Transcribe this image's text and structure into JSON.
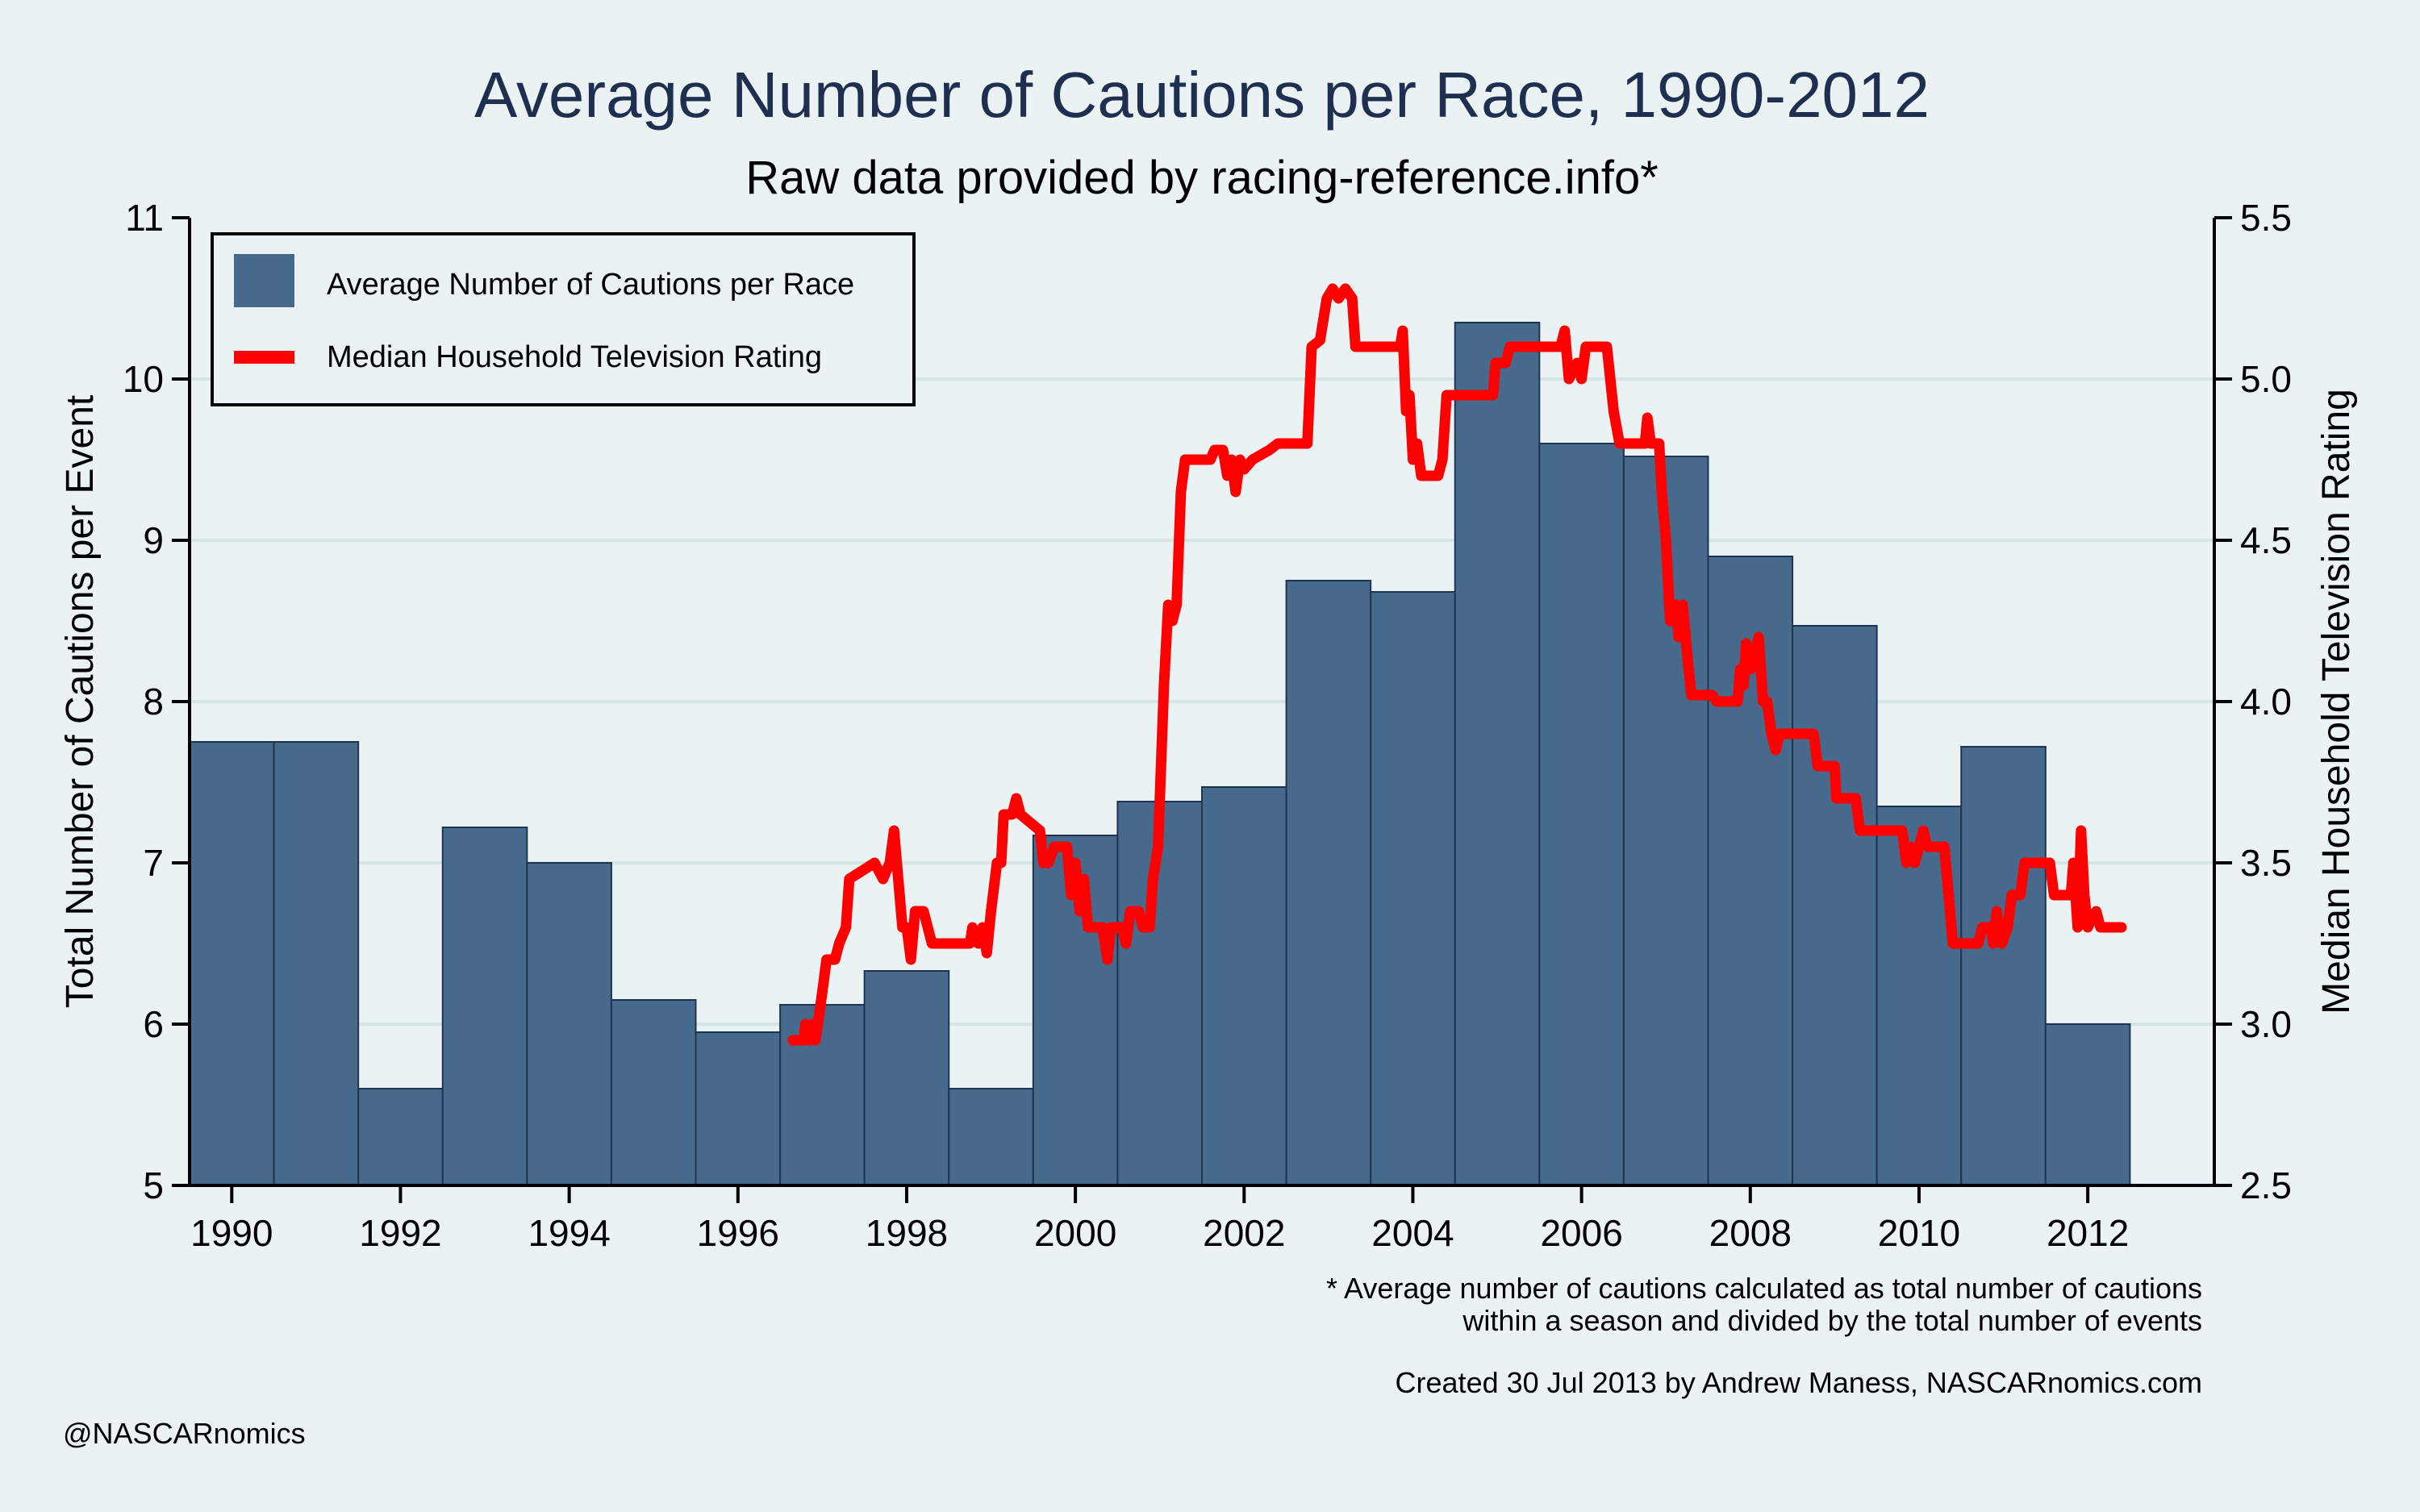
{
  "chart_data": {
    "type": "bar",
    "title": "Average Number of Cautions per Race, 1990-2012",
    "subtitle": "Raw data provided by racing-reference.info*",
    "ylabel": "Total Number of Cautions per Event",
    "y2label": "Median Household Television Rating",
    "xlim": [
      1989.5,
      2013.5
    ],
    "ylim": [
      5,
      11
    ],
    "y2lim": [
      2.5,
      5.5
    ],
    "x_ticks": [
      "1990",
      "1992",
      "1994",
      "1996",
      "1998",
      "2000",
      "2002",
      "2004",
      "2006",
      "2008",
      "2010",
      "2012"
    ],
    "y_ticks": [
      "5",
      "6",
      "7",
      "8",
      "9",
      "10",
      "11"
    ],
    "y2_ticks": [
      "2.5",
      "3.0",
      "3.5",
      "4.0",
      "4.5",
      "5.0",
      "5.5"
    ],
    "grid": true,
    "legend_position": "top-left",
    "colors": {
      "background": "#eaf2f3",
      "bar": "#476a8c",
      "line": "#ff0000",
      "title": "#1f2f4f"
    },
    "series": [
      {
        "name": "Average Number of Cautions per Race",
        "type": "bar",
        "axis": "left",
        "x": [
          1990,
          1991,
          1992,
          1993,
          1994,
          1995,
          1996,
          1997,
          1998,
          1999,
          2000,
          2001,
          2002,
          2003,
          2004,
          2005,
          2006,
          2007,
          2008,
          2009,
          2010,
          2011,
          2012
        ],
        "values": [
          7.75,
          7.75,
          5.6,
          7.22,
          7.0,
          6.15,
          5.95,
          6.12,
          6.33,
          5.6,
          7.17,
          7.38,
          7.47,
          8.75,
          8.68,
          10.35,
          9.6,
          9.52,
          8.9,
          8.47,
          7.35,
          7.72,
          6.0
        ]
      },
      {
        "name": "Median Household Television Rating",
        "type": "line",
        "axis": "right",
        "points": [
          [
            1996.65,
            2.95
          ],
          [
            1996.78,
            2.95
          ],
          [
            1996.8,
            3.0
          ],
          [
            1996.85,
            2.95
          ],
          [
            1996.88,
            3.0
          ],
          [
            1996.92,
            2.95
          ],
          [
            1997.0,
            3.1
          ],
          [
            1997.05,
            3.2
          ],
          [
            1997.15,
            3.2
          ],
          [
            1997.2,
            3.25
          ],
          [
            1997.28,
            3.3
          ],
          [
            1997.32,
            3.45
          ],
          [
            1997.5,
            3.48
          ],
          [
            1997.62,
            3.5
          ],
          [
            1997.72,
            3.45
          ],
          [
            1997.8,
            3.5
          ],
          [
            1997.85,
            3.6
          ],
          [
            1997.9,
            3.45
          ],
          [
            1997.95,
            3.3
          ],
          [
            1998.0,
            3.3
          ],
          [
            1998.05,
            3.2
          ],
          [
            1998.1,
            3.35
          ],
          [
            1998.2,
            3.35
          ],
          [
            1998.25,
            3.3
          ],
          [
            1998.3,
            3.25
          ],
          [
            1998.75,
            3.25
          ],
          [
            1998.78,
            3.3
          ],
          [
            1998.85,
            3.25
          ],
          [
            1998.9,
            3.3
          ],
          [
            1998.95,
            3.22
          ],
          [
            1999.0,
            3.35
          ],
          [
            1999.07,
            3.5
          ],
          [
            1999.12,
            3.5
          ],
          [
            1999.15,
            3.65
          ],
          [
            1999.25,
            3.65
          ],
          [
            1999.3,
            3.7
          ],
          [
            1999.35,
            3.65
          ],
          [
            1999.58,
            3.6
          ],
          [
            1999.62,
            3.5
          ],
          [
            1999.68,
            3.5
          ],
          [
            1999.75,
            3.55
          ],
          [
            1999.9,
            3.55
          ],
          [
            1999.95,
            3.4
          ],
          [
            2000.0,
            3.5
          ],
          [
            2000.05,
            3.35
          ],
          [
            2000.1,
            3.45
          ],
          [
            2000.15,
            3.3
          ],
          [
            2000.32,
            3.3
          ],
          [
            2000.38,
            3.2
          ],
          [
            2000.42,
            3.3
          ],
          [
            2000.55,
            3.3
          ],
          [
            2000.6,
            3.25
          ],
          [
            2000.65,
            3.35
          ],
          [
            2000.75,
            3.35
          ],
          [
            2000.8,
            3.3
          ],
          [
            2000.88,
            3.3
          ],
          [
            2000.92,
            3.45
          ],
          [
            2000.98,
            3.55
          ],
          [
            2001.05,
            4.05
          ],
          [
            2001.1,
            4.3
          ],
          [
            2001.15,
            4.25
          ],
          [
            2001.2,
            4.3
          ],
          [
            2001.25,
            4.65
          ],
          [
            2001.3,
            4.75
          ],
          [
            2001.6,
            4.75
          ],
          [
            2001.65,
            4.78
          ],
          [
            2001.75,
            4.78
          ],
          [
            2001.8,
            4.7
          ],
          [
            2001.85,
            4.75
          ],
          [
            2001.9,
            4.65
          ],
          [
            2001.95,
            4.75
          ],
          [
            2002.0,
            4.72
          ],
          [
            2002.1,
            4.75
          ],
          [
            2002.3,
            4.78
          ],
          [
            2002.4,
            4.8
          ],
          [
            2002.75,
            4.8
          ],
          [
            2002.8,
            5.1
          ],
          [
            2002.9,
            5.12
          ],
          [
            2002.98,
            5.25
          ],
          [
            2003.05,
            5.28
          ],
          [
            2003.12,
            5.25
          ],
          [
            2003.2,
            5.28
          ],
          [
            2003.28,
            5.25
          ],
          [
            2003.32,
            5.1
          ],
          [
            2003.85,
            5.1
          ],
          [
            2003.88,
            5.15
          ],
          [
            2003.92,
            4.9
          ],
          [
            2003.96,
            4.95
          ],
          [
            2004.0,
            4.75
          ],
          [
            2004.05,
            4.8
          ],
          [
            2004.1,
            4.7
          ],
          [
            2004.3,
            4.7
          ],
          [
            2004.35,
            4.75
          ],
          [
            2004.4,
            4.95
          ],
          [
            2004.95,
            4.95
          ],
          [
            2004.98,
            5.05
          ],
          [
            2005.1,
            5.05
          ],
          [
            2005.15,
            5.1
          ],
          [
            2005.75,
            5.1
          ],
          [
            2005.8,
            5.15
          ],
          [
            2005.85,
            5.0
          ],
          [
            2005.95,
            5.05
          ],
          [
            2006.0,
            5.0
          ],
          [
            2006.05,
            5.1
          ],
          [
            2006.3,
            5.1
          ],
          [
            2006.38,
            4.9
          ],
          [
            2006.45,
            4.8
          ],
          [
            2006.75,
            4.8
          ],
          [
            2006.78,
            4.88
          ],
          [
            2006.82,
            4.8
          ],
          [
            2006.92,
            4.8
          ],
          [
            2006.95,
            4.65
          ],
          [
            2007.0,
            4.5
          ],
          [
            2007.05,
            4.25
          ],
          [
            2007.12,
            4.3
          ],
          [
            2007.15,
            4.2
          ],
          [
            2007.2,
            4.3
          ],
          [
            2007.25,
            4.15
          ],
          [
            2007.3,
            4.02
          ],
          [
            2007.55,
            4.02
          ],
          [
            2007.6,
            4.0
          ],
          [
            2007.85,
            4.0
          ],
          [
            2007.88,
            4.1
          ],
          [
            2007.92,
            4.05
          ],
          [
            2007.95,
            4.18
          ],
          [
            2008.0,
            4.1
          ],
          [
            2008.05,
            4.15
          ],
          [
            2008.1,
            4.2
          ],
          [
            2008.15,
            4.0
          ],
          [
            2008.2,
            4.0
          ],
          [
            2008.25,
            3.9
          ],
          [
            2008.3,
            3.85
          ],
          [
            2008.35,
            3.9
          ],
          [
            2008.75,
            3.9
          ],
          [
            2008.8,
            3.8
          ],
          [
            2009.0,
            3.8
          ],
          [
            2009.02,
            3.7
          ],
          [
            2009.25,
            3.7
          ],
          [
            2009.3,
            3.6
          ],
          [
            2009.8,
            3.6
          ],
          [
            2009.85,
            3.5
          ],
          [
            2009.9,
            3.55
          ],
          [
            2009.95,
            3.5
          ],
          [
            2010.05,
            3.6
          ],
          [
            2010.1,
            3.55
          ],
          [
            2010.3,
            3.55
          ],
          [
            2010.35,
            3.4
          ],
          [
            2010.4,
            3.25
          ],
          [
            2010.7,
            3.25
          ],
          [
            2010.75,
            3.3
          ],
          [
            2010.85,
            3.3
          ],
          [
            2010.88,
            3.25
          ],
          [
            2010.92,
            3.35
          ],
          [
            2010.98,
            3.25
          ],
          [
            2011.05,
            3.3
          ],
          [
            2011.1,
            3.4
          ],
          [
            2011.2,
            3.4
          ],
          [
            2011.25,
            3.5
          ],
          [
            2011.55,
            3.5
          ],
          [
            2011.6,
            3.4
          ],
          [
            2011.8,
            3.4
          ],
          [
            2011.83,
            3.5
          ],
          [
            2011.88,
            3.3
          ],
          [
            2011.92,
            3.6
          ],
          [
            2011.96,
            3.4
          ],
          [
            2012.0,
            3.3
          ],
          [
            2012.1,
            3.35
          ],
          [
            2012.15,
            3.3
          ],
          [
            2012.4,
            3.3
          ]
        ]
      }
    ],
    "footnote_line1": "* Average number of cautions calculated as total number of cautions",
    "footnote_line2": "within a season and divided by the total number of events",
    "credit": "Created 30 Jul 2013 by Andrew Maness, NASCARnomics.com",
    "handle": "@NASCARnomics"
  }
}
